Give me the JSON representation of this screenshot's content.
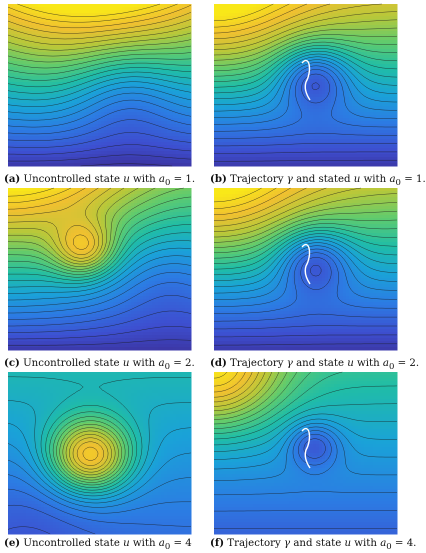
{
  "figure": {
    "panels": [
      {
        "tag": "(a)",
        "text": "Uncontrolled state u with a0 = 1.",
        "pre": "Uncontrolled state ",
        "var": "u",
        "mid": " with ",
        "sym": "a",
        "sub": "0",
        "post": " = 1.",
        "kind": "uncontrolled",
        "a0": 1
      },
      {
        "tag": "(b)",
        "text": "Trajectory γ and stated u with a0 = 1.",
        "pre": "Trajectory ",
        "var": "γ",
        "mid": " and stated ",
        "var2": "u",
        "mid2": " with ",
        "sym": "a",
        "sub": "0",
        "post": " = 1.",
        "kind": "controlled",
        "a0": 1
      },
      {
        "tag": "(c)",
        "text": "Uncontrolled state u with a0 = 2.",
        "pre": "Uncontrolled state ",
        "var": "u",
        "mid": " with ",
        "sym": "a",
        "sub": "0",
        "post": " = 2.",
        "kind": "uncontrolled",
        "a0": 2
      },
      {
        "tag": "(d)",
        "text": "Trajectory γ and state u with a0 = 2.",
        "pre": "Trajectory ",
        "var": "γ",
        "mid": " and state ",
        "var2": "u",
        "mid2": " with ",
        "sym": "a",
        "sub": "0",
        "post": " = 2.",
        "kind": "controlled",
        "a0": 2
      },
      {
        "tag": "(e)",
        "text": "Uncontrolled state u with a0 = 4",
        "pre": "Uncontrolled state ",
        "var": "u",
        "mid": " with ",
        "sym": "a",
        "sub": "0",
        "post": " = 4",
        "kind": "uncontrolled",
        "a0": 4
      },
      {
        "tag": "(f)",
        "text": "Trajectory γ and state u with a0 = 4.",
        "pre": "Trajectory ",
        "var": "γ",
        "mid": " and state ",
        "var2": "u",
        "mid2": " with ",
        "sym": "a",
        "sub": "0",
        "post": " = 4.",
        "kind": "controlled",
        "a0": 4
      }
    ]
  },
  "colors": {
    "colormap": [
      "#3b2a8f",
      "#3d4fd0",
      "#2c7be3",
      "#1aa2d8",
      "#20bda6",
      "#5fcb6e",
      "#b7c83a",
      "#f0c030",
      "#f9e818"
    ],
    "contour": "#1a1a1a",
    "trajectory": "#ffffff"
  }
}
